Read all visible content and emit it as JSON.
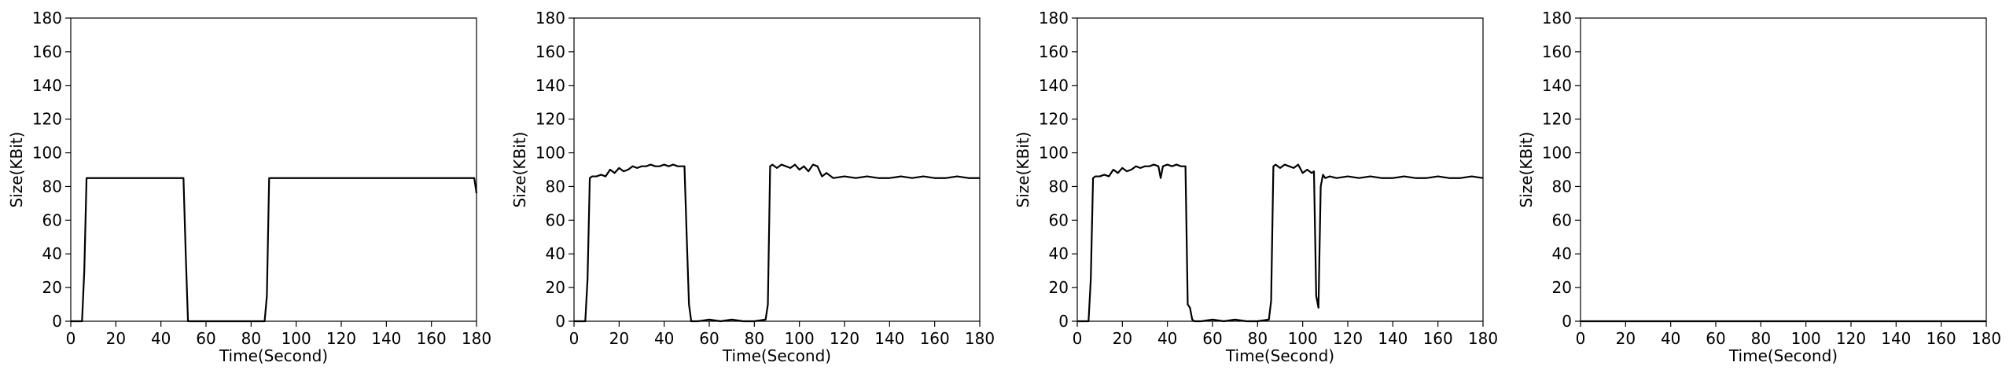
{
  "chart_data": [
    {
      "type": "line",
      "xlabel": "Time(Second)",
      "ylabel": "Size(KBit)",
      "xlim": [
        0,
        180
      ],
      "ylim": [
        0,
        180
      ],
      "xticks": [
        0,
        20,
        40,
        60,
        80,
        100,
        120,
        140,
        160,
        180
      ],
      "yticks": [
        0,
        20,
        40,
        60,
        80,
        100,
        120,
        140,
        160,
        180
      ],
      "grid": false,
      "series": [
        {
          "color": "#000000",
          "x": [
            0,
            5,
            6,
            7,
            8,
            50,
            51,
            52,
            53,
            86,
            87,
            88,
            89,
            179,
            180
          ],
          "y": [
            0,
            0,
            30,
            85,
            85,
            85,
            40,
            0,
            0,
            0,
            15,
            85,
            85,
            85,
            76
          ]
        }
      ]
    },
    {
      "type": "line",
      "xlabel": "Time(Second)",
      "ylabel": "Size(KBit)",
      "xlim": [
        0,
        180
      ],
      "ylim": [
        0,
        180
      ],
      "xticks": [
        0,
        20,
        40,
        60,
        80,
        100,
        120,
        140,
        160,
        180
      ],
      "yticks": [
        0,
        20,
        40,
        60,
        80,
        100,
        120,
        140,
        160,
        180
      ],
      "grid": false,
      "series": [
        {
          "color": "#000000",
          "x": [
            0,
            5,
            6,
            7,
            8,
            10,
            12,
            14,
            16,
            18,
            20,
            22,
            24,
            26,
            28,
            30,
            32,
            34,
            36,
            38,
            40,
            42,
            44,
            46,
            48,
            49,
            50,
            51,
            52,
            55,
            60,
            65,
            70,
            75,
            80,
            85,
            86,
            87,
            88,
            90,
            92,
            94,
            96,
            98,
            100,
            102,
            104,
            106,
            108,
            110,
            112,
            115,
            120,
            125,
            130,
            135,
            140,
            145,
            150,
            155,
            160,
            165,
            170,
            175,
            180
          ],
          "y": [
            0,
            0,
            25,
            85,
            86,
            86,
            87,
            86,
            90,
            88,
            91,
            89,
            90,
            92,
            91,
            92,
            92,
            93,
            92,
            92,
            93,
            92,
            93,
            92,
            92,
            92,
            50,
            10,
            0,
            0,
            1,
            0,
            1,
            0,
            0,
            1,
            10,
            92,
            93,
            91,
            93,
            92,
            91,
            93,
            90,
            92,
            89,
            93,
            92,
            86,
            88,
            85,
            86,
            85,
            86,
            85,
            85,
            86,
            85,
            86,
            85,
            85,
            86,
            85,
            85
          ]
        }
      ]
    },
    {
      "type": "line",
      "xlabel": "Time(Second)",
      "ylabel": "Size(KBit)",
      "xlim": [
        0,
        180
      ],
      "ylim": [
        0,
        180
      ],
      "xticks": [
        0,
        20,
        40,
        60,
        80,
        100,
        120,
        140,
        160,
        180
      ],
      "yticks": [
        0,
        20,
        40,
        60,
        80,
        100,
        120,
        140,
        160,
        180
      ],
      "grid": false,
      "series": [
        {
          "color": "#000000",
          "x": [
            0,
            5,
            6,
            7,
            8,
            10,
            12,
            14,
            16,
            18,
            20,
            22,
            24,
            26,
            28,
            30,
            32,
            34,
            36,
            37,
            38,
            40,
            42,
            44,
            46,
            48,
            49,
            50,
            51,
            52,
            55,
            60,
            65,
            70,
            75,
            80,
            85,
            86,
            87,
            88,
            90,
            92,
            94,
            96,
            98,
            100,
            102,
            104,
            105,
            106,
            107,
            108,
            109,
            110,
            112,
            115,
            120,
            125,
            130,
            135,
            140,
            145,
            150,
            155,
            160,
            165,
            170,
            175,
            180
          ],
          "y": [
            0,
            0,
            25,
            85,
            86,
            86,
            87,
            86,
            90,
            88,
            91,
            89,
            90,
            92,
            91,
            92,
            92,
            93,
            92,
            85,
            92,
            93,
            92,
            93,
            92,
            92,
            10,
            8,
            1,
            0,
            0,
            1,
            0,
            1,
            0,
            0,
            1,
            12,
            92,
            93,
            91,
            93,
            92,
            91,
            93,
            88,
            90,
            88,
            89,
            15,
            8,
            80,
            87,
            85,
            86,
            85,
            86,
            85,
            86,
            85,
            85,
            86,
            85,
            85,
            86,
            85,
            85,
            86,
            85
          ]
        }
      ]
    },
    {
      "type": "line",
      "xlabel": "Time(Second)",
      "ylabel": "Size(KBit)",
      "xlim": [
        0,
        180
      ],
      "ylim": [
        0,
        180
      ],
      "xticks": [
        0,
        20,
        40,
        60,
        80,
        100,
        120,
        140,
        160,
        180
      ],
      "yticks": [
        0,
        20,
        40,
        60,
        80,
        100,
        120,
        140,
        160,
        180
      ],
      "grid": false,
      "series": [
        {
          "color": "#000000",
          "x": [
            0,
            180
          ],
          "y": [
            0,
            0
          ]
        }
      ]
    }
  ]
}
